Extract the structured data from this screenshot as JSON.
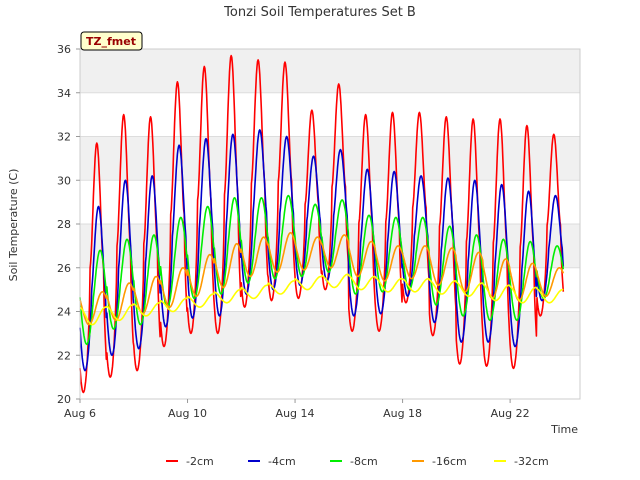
{
  "chart_data": {
    "type": "line",
    "title": "Tonzi Soil Temperatures Set B",
    "xlabel": "Time",
    "ylabel": "Soil Temperature (C)",
    "badge": "TZ_fmet",
    "ylim": [
      20,
      36
    ],
    "yticks": [
      20,
      22,
      24,
      26,
      28,
      30,
      32,
      34,
      36
    ],
    "xlim": [
      "2000-08-06",
      "2000-08-24"
    ],
    "xticks": [
      {
        "value": "2000-08-06",
        "label": "Aug 6"
      },
      {
        "value": "2000-08-10",
        "label": "Aug 10"
      },
      {
        "value": "2000-08-14",
        "label": "Aug 14"
      },
      {
        "value": "2000-08-18",
        "label": "Aug 18"
      },
      {
        "value": "2000-08-22",
        "label": "Aug 22"
      }
    ],
    "grid": "horizontal bands",
    "legend_position": "bottom",
    "day_dates": [
      "2000-08-06",
      "2000-08-07",
      "2000-08-08",
      "2000-08-09",
      "2000-08-10",
      "2000-08-11",
      "2000-08-12",
      "2000-08-13",
      "2000-08-14",
      "2000-08-15",
      "2000-08-16",
      "2000-08-17",
      "2000-08-18",
      "2000-08-19",
      "2000-08-20",
      "2000-08-21",
      "2000-08-22",
      "2000-08-23"
    ],
    "series": [
      {
        "name": "-2cm",
        "color": "#ff0000",
        "sharpness": 1.6,
        "lag_hours": 0,
        "daily_max": [
          31.7,
          33.0,
          32.9,
          34.5,
          35.2,
          35.7,
          35.5,
          35.4,
          33.2,
          34.4,
          33.0,
          33.1,
          33.1,
          32.9,
          32.8,
          32.8,
          32.5,
          32.1
        ],
        "daily_min": [
          20.3,
          21.0,
          21.3,
          22.4,
          23.0,
          23.0,
          24.2,
          24.5,
          24.6,
          25.0,
          23.1,
          23.1,
          24.4,
          22.9,
          21.6,
          21.5,
          21.4,
          23.8
        ]
      },
      {
        "name": "-4cm",
        "color": "#0000cc",
        "sharpness": 1.3,
        "lag_hours": 1.5,
        "daily_max": [
          28.8,
          30.0,
          30.2,
          31.6,
          31.9,
          32.1,
          32.3,
          32.0,
          31.1,
          31.4,
          30.5,
          30.4,
          30.2,
          30.1,
          30.0,
          29.8,
          29.5,
          29.3
        ],
        "daily_min": [
          21.3,
          22.0,
          22.3,
          23.3,
          23.7,
          23.8,
          24.8,
          25.0,
          25.2,
          25.4,
          23.8,
          23.9,
          24.7,
          23.5,
          22.6,
          22.6,
          22.4,
          24.5
        ]
      },
      {
        "name": "-8cm",
        "color": "#00ee00",
        "sharpness": 1.1,
        "lag_hours": 3,
        "daily_max": [
          26.8,
          27.3,
          27.5,
          28.3,
          28.8,
          29.2,
          29.2,
          29.3,
          28.9,
          29.1,
          28.4,
          28.3,
          28.3,
          27.9,
          27.5,
          27.3,
          27.2,
          27.0
        ],
        "daily_min": [
          22.5,
          23.2,
          23.4,
          24.2,
          24.6,
          24.8,
          25.3,
          25.5,
          25.6,
          25.8,
          24.8,
          24.9,
          25.0,
          24.3,
          23.8,
          23.6,
          23.6,
          24.6
        ]
      },
      {
        "name": "-16cm",
        "color": "#ff9900",
        "sharpness": 1.0,
        "lag_hours": 5,
        "daily_max": [
          24.9,
          25.3,
          25.6,
          26.0,
          26.6,
          27.1,
          27.4,
          27.6,
          27.4,
          27.5,
          27.2,
          27.0,
          27.0,
          26.9,
          26.7,
          26.4,
          26.2,
          26.0
        ],
        "daily_min": [
          23.4,
          23.6,
          23.9,
          24.2,
          24.7,
          25.1,
          25.6,
          25.8,
          25.9,
          26.0,
          25.6,
          25.4,
          25.5,
          25.2,
          24.9,
          24.6,
          24.5,
          24.7
        ]
      },
      {
        "name": "-32cm",
        "color": "#ffff00",
        "sharpness": 1.0,
        "lag_hours": 8,
        "daily_max": [
          24.2,
          24.3,
          24.4,
          24.6,
          24.8,
          25.0,
          25.2,
          25.4,
          25.6,
          25.7,
          25.6,
          25.5,
          25.5,
          25.4,
          25.3,
          25.2,
          25.1,
          25.0
        ],
        "daily_min": [
          23.4,
          23.6,
          23.8,
          24.0,
          24.2,
          24.4,
          24.6,
          24.8,
          25.0,
          25.1,
          25.0,
          24.9,
          24.9,
          24.8,
          24.7,
          24.5,
          24.4,
          24.4
        ]
      }
    ]
  }
}
